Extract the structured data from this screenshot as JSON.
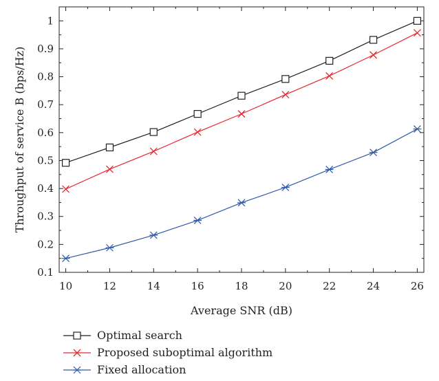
{
  "chart_data": {
    "type": "line",
    "title": "",
    "xlabel": "Average SNR (dB)",
    "ylabel": "Throughput of service B (bps/Hz)",
    "xlim": [
      9.7,
      26.3
    ],
    "ylim": [
      0.1,
      1.05
    ],
    "x_ticks": [
      10,
      12,
      14,
      16,
      18,
      20,
      22,
      24,
      26
    ],
    "y_ticks": [
      0.1,
      0.2,
      0.3,
      0.4,
      0.5,
      0.6,
      0.7,
      0.8,
      0.9,
      1
    ],
    "grid": false,
    "legend_position": "bottom-left, below plot",
    "x": [
      10,
      12,
      14,
      16,
      18,
      20,
      22,
      24,
      26
    ],
    "series": [
      {
        "name": "Optimal search",
        "color": "#231f20",
        "marker": "square",
        "values": [
          0.492,
          0.547,
          0.602,
          0.667,
          0.732,
          0.792,
          0.857,
          0.932,
          1.0
        ]
      },
      {
        "name": "Proposed suboptimal algorithm",
        "color": "#e8262d",
        "marker": "x",
        "values": [
          0.398,
          0.469,
          0.533,
          0.602,
          0.667,
          0.736,
          0.803,
          0.878,
          0.957
        ]
      },
      {
        "name": "Fixed allocation",
        "color": "#2e5aa8",
        "marker": "asterisk",
        "values": [
          0.15,
          0.188,
          0.233,
          0.286,
          0.349,
          0.404,
          0.468,
          0.529,
          0.613
        ]
      }
    ]
  }
}
